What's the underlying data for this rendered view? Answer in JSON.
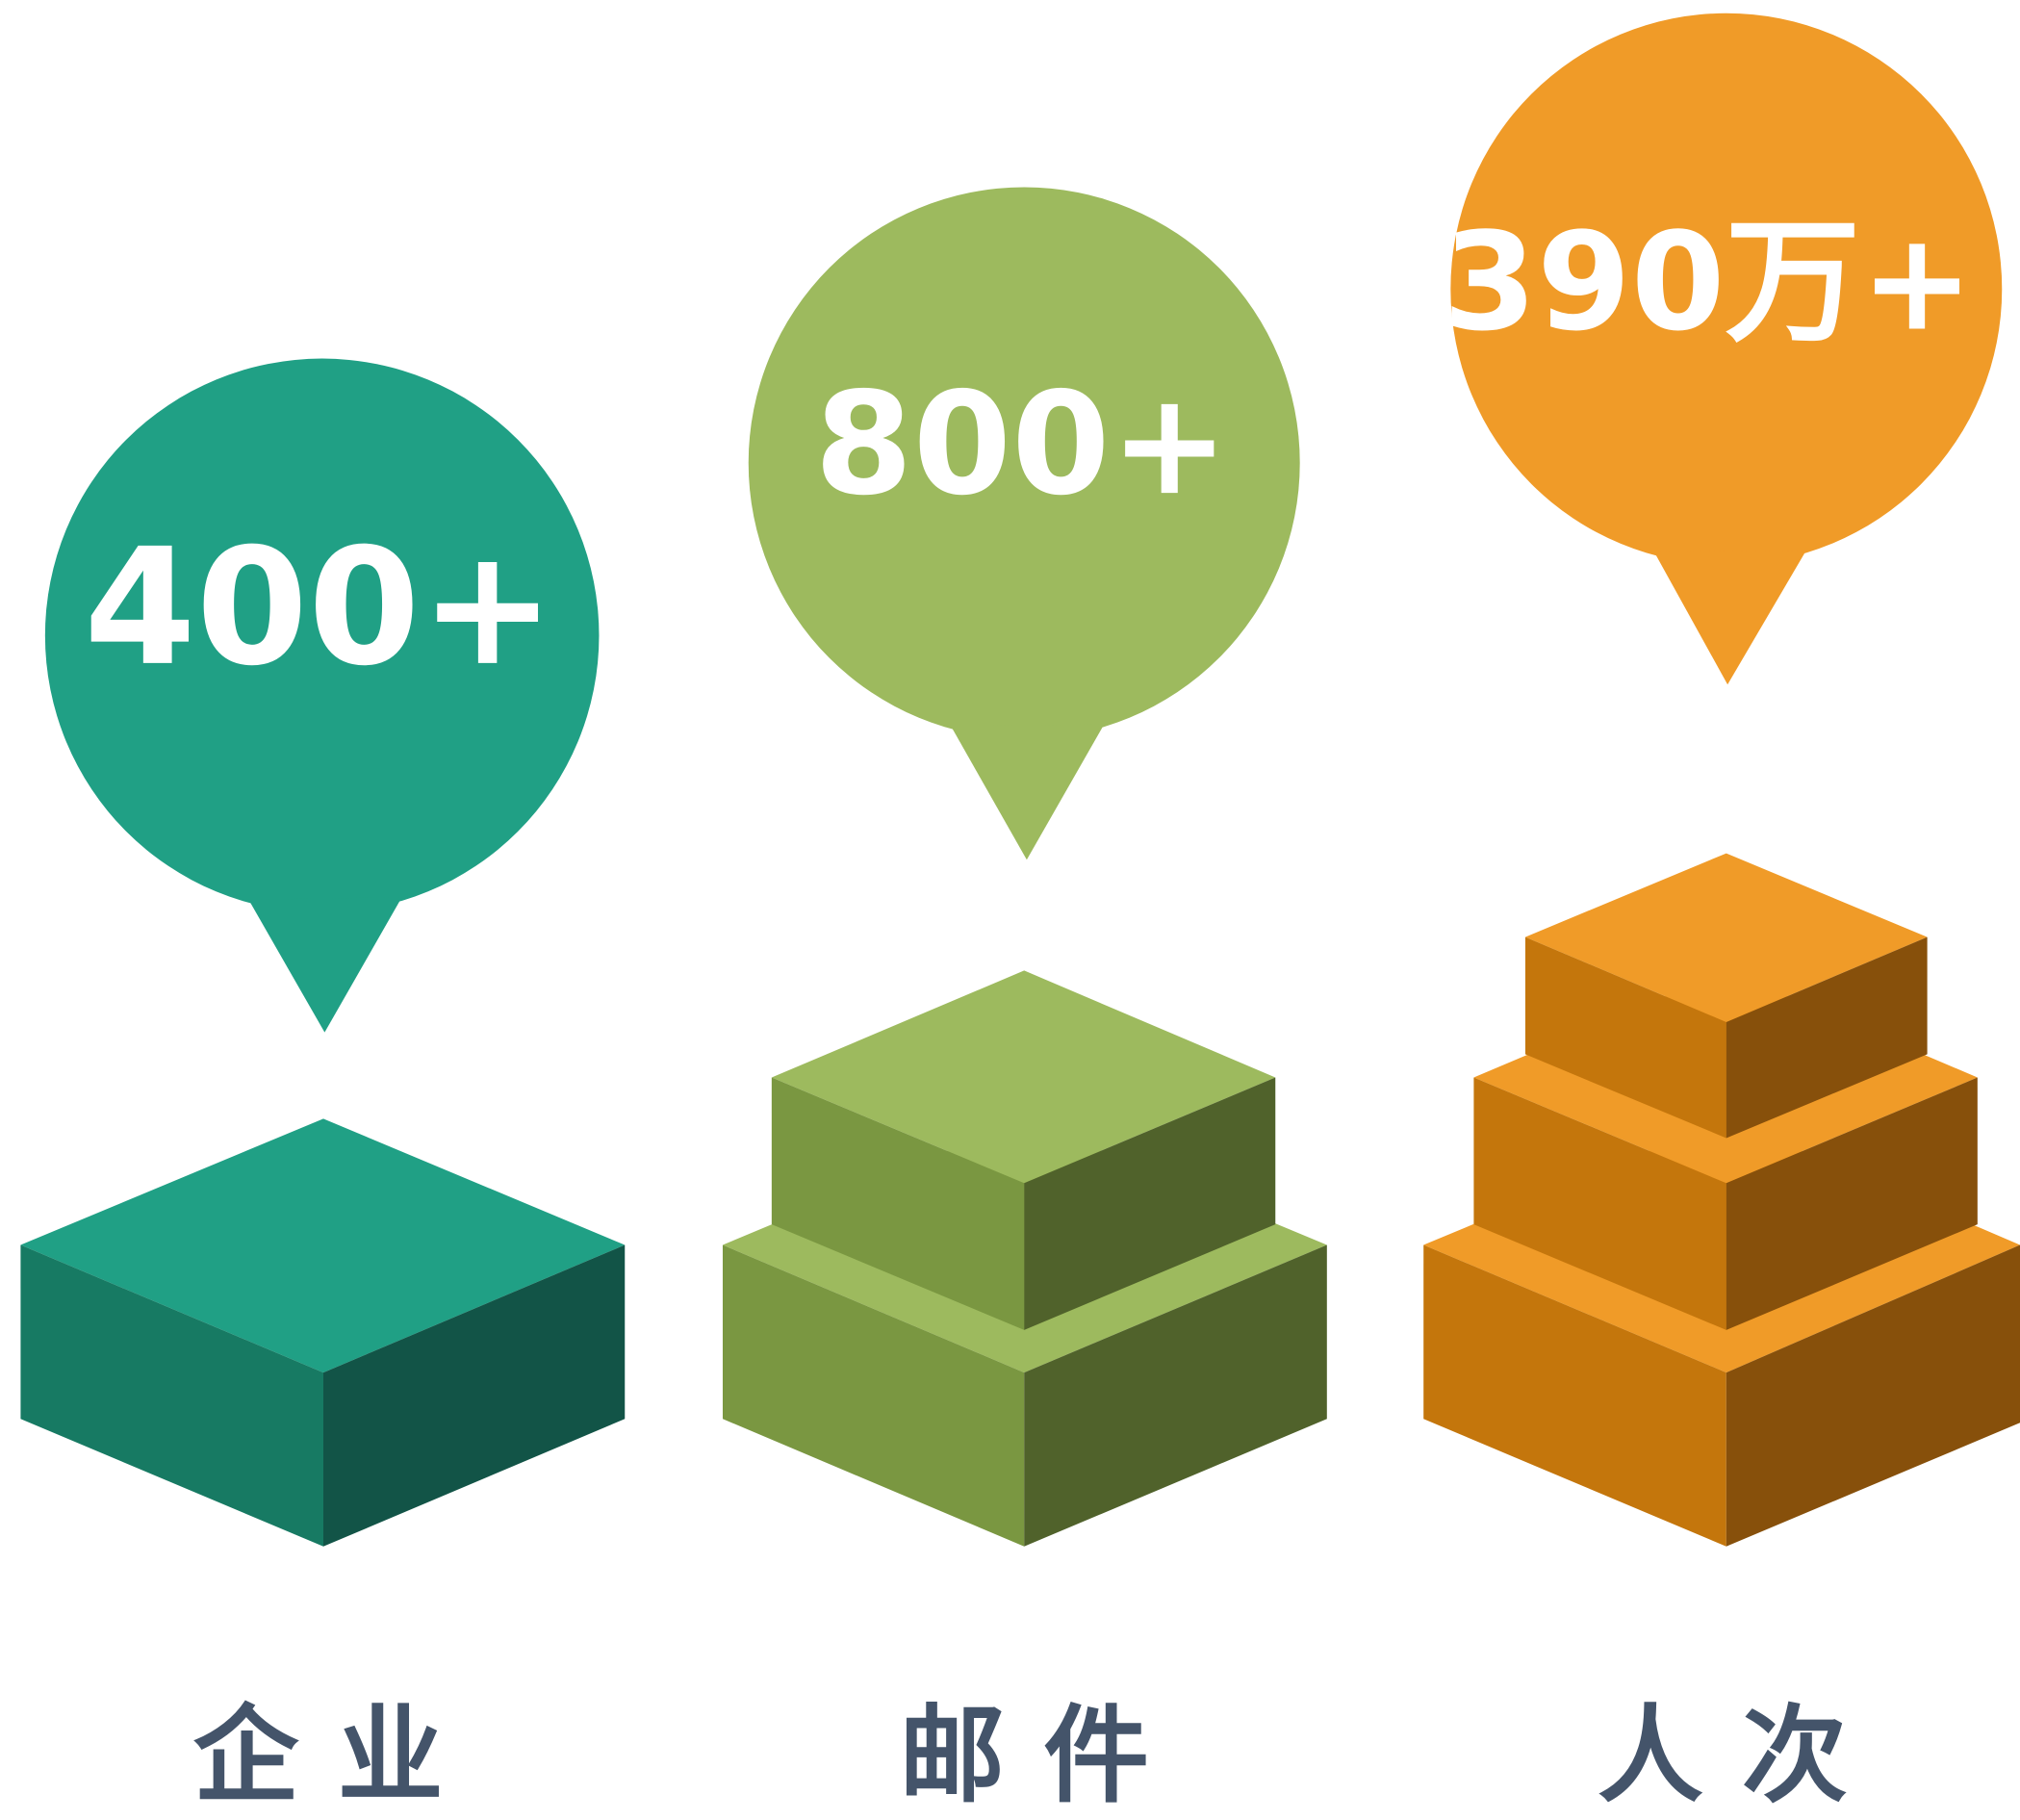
{
  "items": [
    {
      "value": "400+",
      "label": "企业"
    },
    {
      "value": "800+",
      "label": "邮件"
    },
    {
      "value": "390万+",
      "label": "人次"
    }
  ]
}
